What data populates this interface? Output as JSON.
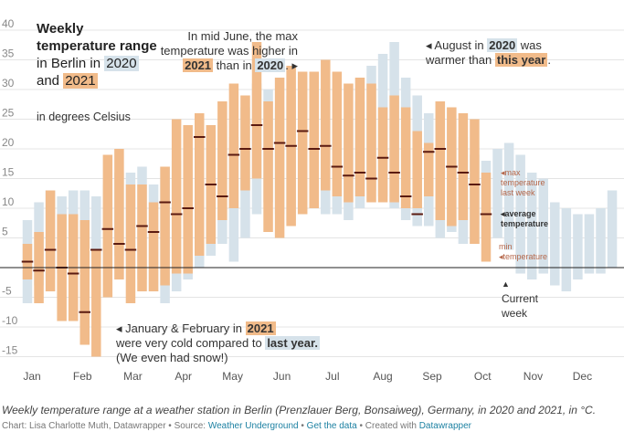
{
  "title": {
    "bold": "Weekly temperature range",
    "in_berlin": "in Berlin",
    "in": "in",
    "year_a": "2020",
    "and": "and",
    "year_b": "2021",
    "units": "in degrees Celsius"
  },
  "annotations": {
    "june": {
      "line1": "In mid June, the max",
      "line2": "temperature was higher in",
      "y2021": "2021",
      "than_in": "than in",
      "y2020": "2020",
      "arrow": ". ▸"
    },
    "august": {
      "arrow": "◂ August in",
      "y2020": "2020",
      "was": "was",
      "warmer_than": "warmer than",
      "this_year": "this year",
      "dot": "."
    },
    "janfeb": {
      "line1": "◂ January & February in",
      "y2021": "2021",
      "line2": "were very cold compared to",
      "last_year": "last year.",
      "line3": "(We even had snow!)"
    },
    "legend_max_a": "◂max",
    "legend_max_b": "temperature",
    "legend_max_c": "last week",
    "legend_avg_a": "◂average",
    "legend_avg_b": "temperature",
    "legend_min_a": "min",
    "legend_min_b": "◂temperature",
    "current_arrow": "▲",
    "current_a": "Current",
    "current_b": "week"
  },
  "caption": "Weekly temperature range at a weather station in Berlin (Prenzlauer Berg, Bonsaiweg), Germany, in 2020 and 2021, in °C.",
  "footer": {
    "credit": "Chart: Lisa Charlotte Muth, Datawrapper • Source:",
    "source": "Weather Underground",
    "sep1": "•",
    "get_data": "Get the data",
    "created": "• Created with",
    "datawrapper": "Datawrapper"
  },
  "colors": {
    "y2020": "#d6e2ea",
    "y2021": "#f1bb8a",
    "avg2021": "#5a1a10",
    "grid": "#e4e4e4",
    "zero": "#222222",
    "legend_text": "#b5674a"
  },
  "chart_data": {
    "type": "bar",
    "subtype": "floating range bars (weekly min–max) with average markers",
    "x_axis": "week of year",
    "month_labels": [
      "Jan",
      "Feb",
      "Mar",
      "Apr",
      "May",
      "Jun",
      "Jul",
      "Aug",
      "Sep",
      "Oct",
      "Nov",
      "Dec"
    ],
    "y_ticks": [
      40,
      35,
      30,
      25,
      20,
      15,
      10,
      5,
      -5,
      -10,
      -15
    ],
    "ylim": [
      -17,
      41
    ],
    "grid": true,
    "current_week": 41,
    "series": [
      {
        "name": "2020",
        "weeks": [
          1,
          2,
          3,
          4,
          5,
          6,
          7,
          8,
          9,
          10,
          11,
          12,
          13,
          14,
          15,
          16,
          17,
          18,
          19,
          20,
          21,
          22,
          23,
          24,
          25,
          26,
          27,
          28,
          29,
          30,
          31,
          32,
          33,
          34,
          35,
          36,
          37,
          38,
          39,
          40,
          41,
          42,
          43,
          44,
          45,
          46,
          47,
          48,
          49,
          50,
          51,
          52
        ],
        "min": [
          -6,
          -3,
          -2,
          -1,
          1,
          4,
          1,
          0,
          2,
          0,
          -2,
          -4,
          -6,
          -4,
          -2,
          0,
          2,
          4,
          1,
          5,
          9,
          11,
          9,
          8,
          9,
          10,
          9,
          9,
          8,
          10,
          13,
          12,
          10,
          8,
          7,
          7,
          5,
          6,
          4,
          4,
          5,
          5,
          3,
          -1,
          -2,
          -1,
          -3,
          -4,
          -2,
          -1,
          -1,
          0
        ],
        "max": [
          8,
          11,
          13,
          12,
          13,
          13,
          12,
          14,
          16,
          16,
          17,
          14,
          17,
          18,
          20,
          22,
          23,
          24,
          22,
          27,
          31,
          30,
          27,
          29,
          32,
          33,
          29,
          25,
          25,
          28,
          34,
          36,
          38,
          32,
          29,
          26,
          28,
          25,
          22,
          19,
          18,
          20,
          21,
          19,
          16,
          15,
          11,
          10,
          9,
          9,
          10,
          13
        ]
      },
      {
        "name": "2021",
        "weeks": [
          1,
          2,
          3,
          4,
          5,
          6,
          7,
          8,
          9,
          10,
          11,
          12,
          13,
          14,
          15,
          16,
          17,
          18,
          19,
          20,
          21,
          22,
          23,
          24,
          25,
          26,
          27,
          28,
          29,
          30,
          31,
          32,
          33,
          34,
          35,
          36,
          37,
          38,
          39,
          40,
          41
        ],
        "min": [
          -2,
          -6,
          -4,
          -9,
          -9,
          -13,
          -15,
          -5,
          -2,
          -6,
          -4,
          -4,
          -3,
          -1,
          -1,
          2,
          4,
          8,
          10,
          13,
          15,
          6,
          5,
          7,
          9,
          10,
          13,
          12,
          11,
          12,
          11,
          11,
          11,
          10,
          10,
          12,
          8,
          7,
          8,
          4,
          1
        ],
        "max": [
          4,
          6,
          13,
          9,
          9,
          8,
          3,
          19,
          20,
          14,
          14,
          11,
          17,
          25,
          24,
          26,
          24,
          28,
          31,
          29,
          38,
          28,
          32,
          34,
          33,
          33,
          35,
          33,
          31,
          32,
          31,
          27,
          29,
          27,
          23,
          21,
          28,
          27,
          26,
          25,
          16
        ],
        "avg": [
          1,
          -0.5,
          3,
          0,
          -1,
          -7.5,
          3,
          6.5,
          4,
          3,
          7,
          6,
          11,
          9,
          10,
          22,
          14,
          12,
          19,
          20,
          24,
          20,
          21,
          20.5,
          23,
          20,
          20.5,
          17,
          15.5,
          16,
          15,
          18.5,
          16,
          12,
          9,
          19.5,
          20,
          17,
          16,
          14,
          9
        ]
      }
    ]
  }
}
